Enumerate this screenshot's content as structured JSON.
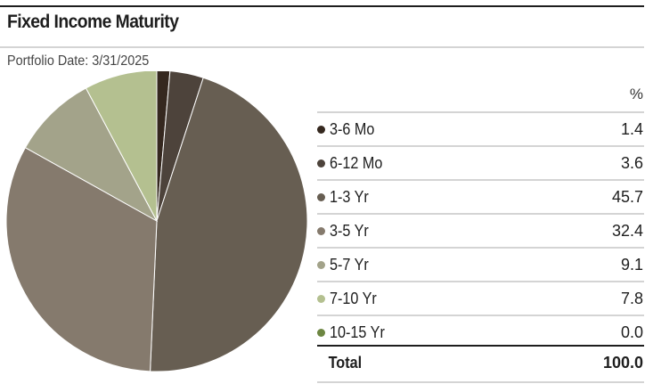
{
  "title": "Fixed Income Maturity",
  "subtitle": "Portfolio Date: 3/31/2025",
  "table": {
    "header_pct": "%",
    "total_label": "Total",
    "total_value": "100.0"
  },
  "chart_data": {
    "type": "pie",
    "title": "Fixed Income Maturity",
    "unit": "%",
    "categories": [
      "3-6 Mo",
      "6-12 Mo",
      "1-3 Yr",
      "3-5 Yr",
      "5-7 Yr",
      "7-10 Yr",
      "10-15 Yr"
    ],
    "values": [
      1.4,
      3.6,
      45.7,
      32.4,
      9.1,
      7.8,
      0.0
    ],
    "value_labels": [
      "1.4",
      "3.6",
      "45.7",
      "32.4",
      "9.1",
      "7.8",
      "0.0"
    ],
    "colors": [
      "#35281f",
      "#4d433b",
      "#675e52",
      "#857a6d",
      "#a3a38a",
      "#b4c090",
      "#6d8642"
    ],
    "start": "12 o'clock, clockwise",
    "total": 100.0
  }
}
